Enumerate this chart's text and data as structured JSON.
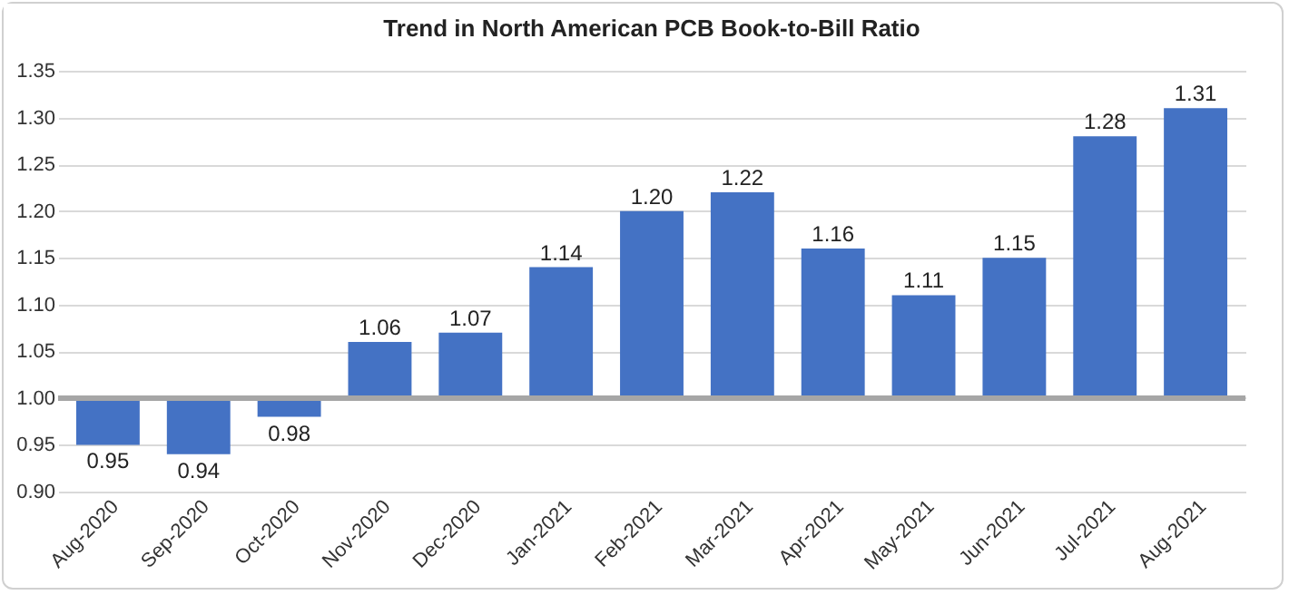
{
  "chart_data": {
    "type": "bar",
    "title": "Trend in North American PCB Book-to-Bill Ratio",
    "categories": [
      "Aug-2020",
      "Sep-2020",
      "Oct-2020",
      "Nov-2020",
      "Dec-2020",
      "Jan-2021",
      "Feb-2021",
      "Mar-2021",
      "Apr-2021",
      "May-2021",
      "Jun-2021",
      "Jul-2021",
      "Aug-2021"
    ],
    "base": [
      1,
      1,
      1,
      1,
      1,
      1,
      1,
      1,
      1,
      1,
      1,
      1,
      1
    ],
    "values": [
      -0.05,
      -0.06,
      -0.02,
      0.06,
      0.07,
      0.14,
      0.2,
      0.22,
      0.16,
      0.11,
      0.15,
      0.28,
      0.31
    ],
    "value_labels": [
      "0.95",
      "0.94",
      "0.98",
      "1.06",
      "1.07",
      "1.14",
      "1.20",
      "1.22",
      "1.16",
      "1.11",
      "1.15",
      "1.28",
      "1.31"
    ],
    "color": "#4472c4",
    "ylim": [
      0.9,
      1.35
    ],
    "yticks": [
      {
        "value": 0.9,
        "label": "0.90"
      },
      {
        "value": 0.95,
        "label": "0.95"
      },
      {
        "value": 1,
        "label": "1.00"
      },
      {
        "value": 1.05,
        "label": "1.05"
      },
      {
        "value": 1.1,
        "label": "1.10"
      },
      {
        "value": 1.15,
        "label": "1.15"
      },
      {
        "value": 1.2,
        "label": "1.20"
      },
      {
        "value": 1.25,
        "label": "1.25"
      },
      {
        "value": 1.3,
        "label": "1.30"
      },
      {
        "value": 1.35,
        "label": "1.35"
      }
    ],
    "ref_lines": [
      {
        "axis": "y",
        "value": 1,
        "color": "#a6a6a6"
      }
    ],
    "grid": true
  }
}
